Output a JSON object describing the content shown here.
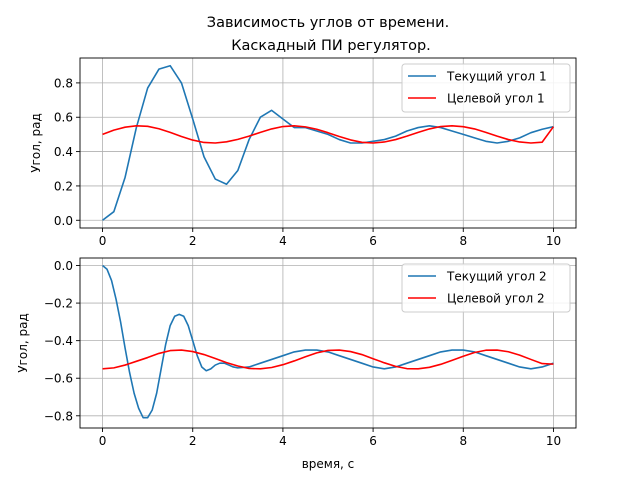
{
  "figure": {
    "title_line1": "Зависимость углов от времени.",
    "title_line2": "Каскадный ПИ регулятор.",
    "xlabel": "время, с"
  },
  "colors": {
    "current": "#1f77b4",
    "target": "#ff0000",
    "grid": "#b0b0b0",
    "axes": "#000000",
    "background": "#ffffff"
  },
  "chart_data": [
    {
      "type": "line",
      "ylabel": "Угол, рад",
      "xlim": [
        -0.5,
        10.5
      ],
      "ylim": [
        -0.045,
        0.945
      ],
      "xticks": [
        0,
        2,
        4,
        6,
        8,
        10
      ],
      "xtick_labels": [
        "0",
        "2",
        "4",
        "6",
        "8",
        "10"
      ],
      "yticks": [
        0.0,
        0.2,
        0.4,
        0.6,
        0.8
      ],
      "ytick_labels": [
        "0.0",
        "0.2",
        "0.4",
        "0.6",
        "0.8"
      ],
      "grid": true,
      "legend": "top-right",
      "series": [
        {
          "name": "Текущий угол 1",
          "role": "current",
          "x": [
            0,
            0.25,
            0.5,
            0.75,
            1.0,
            1.25,
            1.5,
            1.75,
            2.0,
            2.25,
            2.5,
            2.75,
            3.0,
            3.25,
            3.5,
            3.75,
            4.0,
            4.25,
            4.5,
            4.75,
            5.0,
            5.25,
            5.5,
            5.75,
            6.0,
            6.25,
            6.5,
            6.75,
            7.0,
            7.25,
            7.5,
            7.75,
            8.0,
            8.25,
            8.5,
            8.75,
            9.0,
            9.25,
            9.5,
            9.75,
            10.0
          ],
          "y": [
            0.0,
            0.05,
            0.25,
            0.54,
            0.77,
            0.88,
            0.9,
            0.8,
            0.59,
            0.37,
            0.24,
            0.21,
            0.29,
            0.47,
            0.6,
            0.64,
            0.59,
            0.54,
            0.54,
            0.52,
            0.5,
            0.47,
            0.45,
            0.45,
            0.46,
            0.47,
            0.49,
            0.52,
            0.54,
            0.55,
            0.54,
            0.52,
            0.5,
            0.48,
            0.46,
            0.45,
            0.46,
            0.48,
            0.51,
            0.53,
            0.545
          ]
        },
        {
          "name": "Целевой угол 1",
          "role": "target",
          "x": [
            0,
            0.25,
            0.5,
            0.75,
            1.0,
            1.25,
            1.5,
            1.75,
            2.0,
            2.25,
            2.5,
            2.75,
            3.0,
            3.25,
            3.5,
            3.75,
            4.0,
            4.25,
            4.5,
            4.75,
            5.0,
            5.25,
            5.5,
            5.75,
            6.0,
            6.25,
            6.5,
            6.75,
            7.0,
            7.25,
            7.5,
            7.75,
            8.0,
            8.25,
            8.5,
            8.75,
            9.0,
            9.25,
            9.5,
            9.75,
            10.0
          ],
          "y": [
            0.5,
            0.525,
            0.542,
            0.55,
            0.547,
            0.533,
            0.512,
            0.488,
            0.467,
            0.453,
            0.45,
            0.457,
            0.471,
            0.49,
            0.512,
            0.532,
            0.546,
            0.55,
            0.544,
            0.53,
            0.51,
            0.488,
            0.468,
            0.454,
            0.45,
            0.456,
            0.47,
            0.49,
            0.512,
            0.532,
            0.546,
            0.55,
            0.545,
            0.532,
            0.512,
            0.49,
            0.47,
            0.456,
            0.45,
            0.455,
            0.545
          ]
        }
      ]
    },
    {
      "type": "line",
      "ylabel": "Угол, рад",
      "xlim": [
        -0.5,
        10.5
      ],
      "ylim": [
        -0.865,
        0.04
      ],
      "xticks": [
        0,
        2,
        4,
        6,
        8,
        10
      ],
      "xtick_labels": [
        "0",
        "2",
        "4",
        "6",
        "8",
        "10"
      ],
      "yticks": [
        0.0,
        -0.2,
        -0.4,
        -0.6,
        -0.8
      ],
      "ytick_labels": [
        "0.0",
        "−0.2",
        "−0.4",
        "−0.6",
        "−0.8"
      ],
      "grid": true,
      "legend": "top-right",
      "series": [
        {
          "name": "Текущий угол 2",
          "role": "current",
          "x": [
            0,
            0.1,
            0.2,
            0.3,
            0.4,
            0.5,
            0.6,
            0.7,
            0.8,
            0.9,
            1.0,
            1.1,
            1.2,
            1.3,
            1.4,
            1.5,
            1.6,
            1.7,
            1.8,
            1.9,
            2.0,
            2.1,
            2.2,
            2.3,
            2.4,
            2.5,
            2.6,
            2.7,
            2.8,
            2.9,
            3.0,
            3.25,
            3.5,
            3.75,
            4.0,
            4.25,
            4.5,
            4.75,
            5.0,
            5.25,
            5.5,
            5.75,
            6.0,
            6.25,
            6.5,
            6.75,
            7.0,
            7.25,
            7.5,
            7.75,
            8.0,
            8.25,
            8.5,
            8.75,
            9.0,
            9.25,
            9.5,
            9.75,
            10.0
          ],
          "y": [
            0.0,
            -0.02,
            -0.08,
            -0.18,
            -0.3,
            -0.44,
            -0.57,
            -0.68,
            -0.76,
            -0.81,
            -0.81,
            -0.77,
            -0.68,
            -0.55,
            -0.42,
            -0.32,
            -0.27,
            -0.26,
            -0.27,
            -0.32,
            -0.4,
            -0.48,
            -0.54,
            -0.56,
            -0.55,
            -0.53,
            -0.52,
            -0.52,
            -0.53,
            -0.54,
            -0.545,
            -0.54,
            -0.52,
            -0.5,
            -0.48,
            -0.46,
            -0.45,
            -0.45,
            -0.46,
            -0.48,
            -0.5,
            -0.52,
            -0.54,
            -0.55,
            -0.54,
            -0.52,
            -0.5,
            -0.48,
            -0.46,
            -0.45,
            -0.45,
            -0.46,
            -0.48,
            -0.5,
            -0.52,
            -0.54,
            -0.55,
            -0.54,
            -0.52
          ]
        },
        {
          "name": "Целевой угол 2",
          "role": "target",
          "x": [
            0,
            0.25,
            0.5,
            0.75,
            1.0,
            1.25,
            1.5,
            1.75,
            2.0,
            2.25,
            2.5,
            2.75,
            3.0,
            3.25,
            3.5,
            3.75,
            4.0,
            4.25,
            4.5,
            4.75,
            5.0,
            5.25,
            5.5,
            5.75,
            6.0,
            6.25,
            6.5,
            6.75,
            7.0,
            7.25,
            7.5,
            7.75,
            8.0,
            8.25,
            8.5,
            8.75,
            9.0,
            9.25,
            9.5,
            9.75,
            10.0
          ],
          "y": [
            -0.55,
            -0.545,
            -0.53,
            -0.51,
            -0.49,
            -0.468,
            -0.453,
            -0.45,
            -0.458,
            -0.474,
            -0.495,
            -0.517,
            -0.535,
            -0.548,
            -0.55,
            -0.543,
            -0.528,
            -0.508,
            -0.486,
            -0.465,
            -0.452,
            -0.45,
            -0.458,
            -0.474,
            -0.496,
            -0.518,
            -0.537,
            -0.549,
            -0.55,
            -0.542,
            -0.526,
            -0.505,
            -0.483,
            -0.463,
            -0.451,
            -0.45,
            -0.459,
            -0.477,
            -0.5,
            -0.522,
            -0.525
          ]
        }
      ]
    }
  ]
}
